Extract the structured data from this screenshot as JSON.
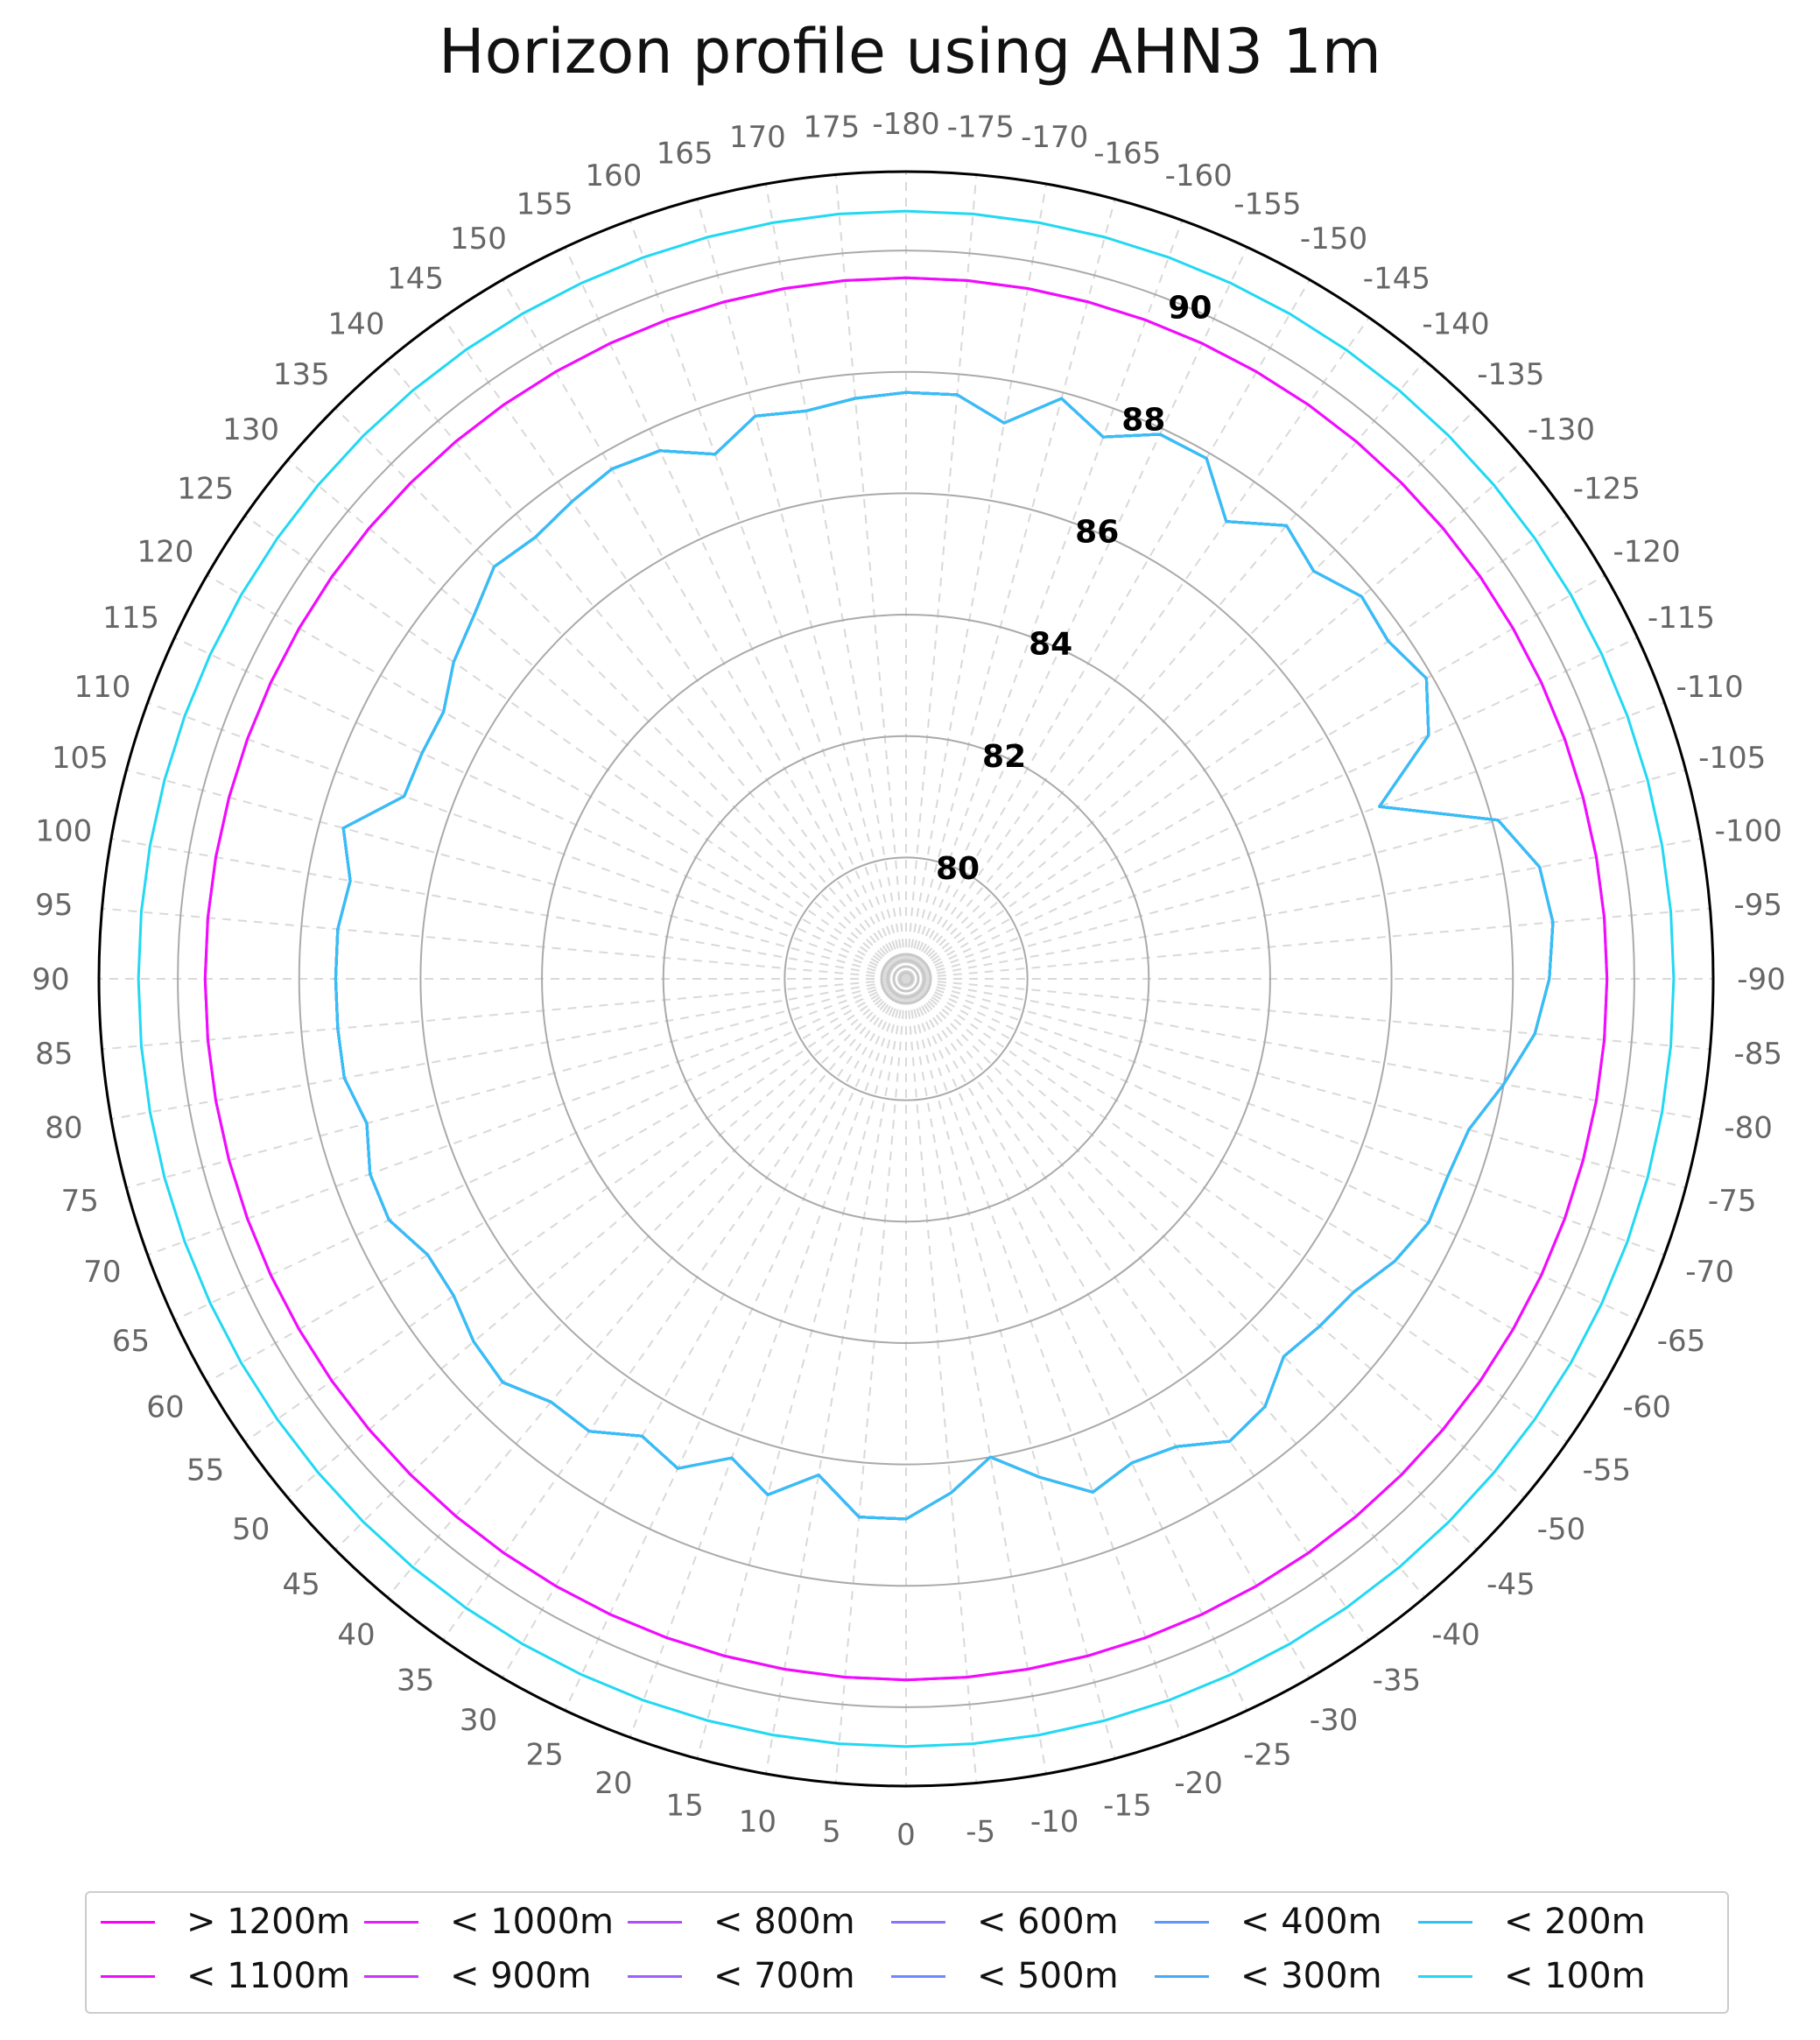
{
  "chart_data": {
    "type": "line",
    "polar": true,
    "title": "Horizon profile using AHN3 1m",
    "theta_direction": "clockwise",
    "theta_zero": "bottom",
    "theta_ticks": [
      -180,
      -175,
      -170,
      -165,
      -160,
      -155,
      -150,
      -145,
      -140,
      -135,
      -130,
      -125,
      -120,
      -115,
      -110,
      -105,
      -100,
      -95,
      -90,
      -85,
      -80,
      -75,
      -70,
      -65,
      -60,
      -55,
      -50,
      -45,
      -40,
      -35,
      -30,
      -25,
      -20,
      -15,
      -10,
      -5,
      0,
      5,
      10,
      15,
      20,
      25,
      30,
      35,
      40,
      45,
      50,
      55,
      60,
      65,
      70,
      75,
      80,
      85,
      90,
      95,
      100,
      105,
      110,
      115,
      120,
      125,
      130,
      135,
      140,
      145,
      150,
      155,
      160,
      165,
      170,
      175
    ],
    "r_ticks": [
      80,
      82,
      84,
      86,
      88,
      90
    ],
    "rlim": [
      78,
      91.3
    ],
    "grid": true,
    "legend_position": "bottom",
    "series": [
      {
        "name": "> 1200m",
        "color": "#ff00ff",
        "r": [
          89.55,
          89.55,
          89.55,
          89.55,
          89.55,
          89.55,
          89.55,
          89.55,
          89.55,
          89.55,
          89.55,
          89.55,
          89.55,
          89.55,
          89.55,
          89.55,
          89.55,
          89.55,
          89.55,
          89.55,
          89.55,
          89.55,
          89.55,
          89.55,
          89.55,
          89.55,
          89.55,
          89.55,
          89.55,
          89.55,
          89.55,
          89.55,
          89.55,
          89.55,
          89.55,
          89.55,
          89.55,
          89.55,
          89.55,
          89.55,
          89.55,
          89.55,
          89.55,
          89.55,
          89.55,
          89.55,
          89.55,
          89.55,
          89.55,
          89.55,
          89.55,
          89.55,
          89.55,
          89.55,
          89.55,
          89.55,
          89.55,
          89.55,
          89.55,
          89.55,
          89.55,
          89.55,
          89.55,
          89.55,
          89.55,
          89.55,
          89.55,
          89.55,
          89.55,
          89.55,
          89.55,
          89.55
        ]
      },
      {
        "name": "< 1100m",
        "color": "#f00cff",
        "r": [
          89.55,
          89.55,
          89.55,
          89.55,
          89.55,
          89.55,
          89.55,
          89.55,
          89.55,
          89.55,
          89.55,
          89.55,
          89.55,
          89.55,
          89.55,
          89.55,
          89.55,
          89.55,
          89.55,
          89.55,
          89.55,
          89.55,
          89.55,
          89.55,
          89.55,
          89.55,
          89.55,
          89.55,
          89.55,
          89.55,
          89.55,
          89.55,
          89.55,
          89.55,
          89.55,
          89.55,
          89.55,
          89.55,
          89.55,
          89.55,
          89.55,
          89.55,
          89.55,
          89.55,
          89.55,
          89.55,
          89.55,
          89.55,
          89.55,
          89.55,
          89.55,
          89.55,
          89.55,
          89.55,
          89.55,
          89.55,
          89.55,
          89.55,
          89.55,
          89.55,
          89.55,
          89.55,
          89.55,
          89.55,
          89.55,
          89.55,
          89.55,
          89.55,
          89.55,
          89.55,
          89.55,
          89.55
        ]
      },
      {
        "name": "< 1000m",
        "color": "#e020ff",
        "r": [
          87.66,
          87.66,
          87.3,
          87.9,
          87.5,
          87.9,
          87.9,
          87.2,
          87.75,
          87.5,
          87.8,
          87.7,
          87.9,
          87.5,
          86.3,
          88.1,
          88.6,
          88.7,
          88.6,
          88.4,
          88.0,
          87.6,
          87.5,
          87.5,
          87.3,
          87.0,
          86.9,
          86.8,
          87.2,
          87.3,
          86.9,
          86.8,
          87.0,
          86.5,
          86.0,
          86.5,
          86.9,
          86.9,
          86.3,
          86.8,
          86.4,
          86.9,
          86.7,
          87.1,
          87.1,
          87.4,
          87.3,
          87.1,
          87.1,
          87.4,
          87.4,
          87.2,
          87.4,
          87.4,
          87.4,
          87.4,
          87.3,
          87.6,
          86.8,
          86.8,
          86.8,
          87.1,
          87.3,
          87.6,
          87.5,
          87.6,
          87.7,
          87.6,
          87.2,
          87.6,
          87.5,
          87.6
        ]
      },
      {
        "name": "< 900m",
        "color": "#cc33ff",
        "r": [
          87.66,
          87.66,
          87.3,
          87.9,
          87.5,
          87.9,
          87.9,
          87.2,
          87.75,
          87.5,
          87.8,
          87.7,
          87.9,
          87.5,
          86.3,
          88.1,
          88.6,
          88.7,
          88.6,
          88.4,
          88.0,
          87.6,
          87.5,
          87.5,
          87.3,
          87.0,
          86.9,
          86.8,
          87.2,
          87.3,
          86.9,
          86.8,
          87.0,
          86.5,
          86.0,
          86.5,
          86.9,
          86.9,
          86.3,
          86.8,
          86.4,
          86.9,
          86.7,
          87.1,
          87.1,
          87.4,
          87.3,
          87.1,
          87.1,
          87.4,
          87.4,
          87.2,
          87.4,
          87.4,
          87.4,
          87.4,
          87.3,
          87.6,
          86.8,
          86.8,
          86.8,
          87.1,
          87.3,
          87.6,
          87.5,
          87.6,
          87.7,
          87.6,
          87.2,
          87.6,
          87.5,
          87.6
        ]
      },
      {
        "name": "< 800m",
        "color": "#b44bff",
        "r": [
          87.66,
          87.66,
          87.3,
          87.9,
          87.5,
          87.9,
          87.9,
          87.2,
          87.75,
          87.5,
          87.8,
          87.7,
          87.9,
          87.5,
          86.3,
          88.1,
          88.6,
          88.7,
          88.6,
          88.4,
          88.0,
          87.6,
          87.5,
          87.5,
          87.3,
          87.0,
          86.9,
          86.8,
          87.2,
          87.3,
          86.9,
          86.8,
          87.0,
          86.5,
          86.0,
          86.5,
          86.9,
          86.9,
          86.3,
          86.8,
          86.4,
          86.9,
          86.7,
          87.1,
          87.1,
          87.4,
          87.3,
          87.1,
          87.1,
          87.4,
          87.4,
          87.2,
          87.4,
          87.4,
          87.4,
          87.4,
          87.3,
          87.6,
          86.8,
          86.8,
          86.8,
          87.1,
          87.3,
          87.6,
          87.5,
          87.6,
          87.7,
          87.6,
          87.2,
          87.6,
          87.5,
          87.6
        ]
      },
      {
        "name": "< 700m",
        "color": "#9e5fff",
        "r": [
          87.66,
          87.66,
          87.3,
          87.9,
          87.5,
          87.9,
          87.9,
          87.2,
          87.75,
          87.5,
          87.8,
          87.7,
          87.9,
          87.5,
          86.3,
          88.1,
          88.6,
          88.7,
          88.6,
          88.4,
          88.0,
          87.6,
          87.5,
          87.5,
          87.3,
          87.0,
          86.9,
          86.8,
          87.2,
          87.3,
          86.9,
          86.8,
          87.0,
          86.5,
          86.0,
          86.5,
          86.9,
          86.9,
          86.3,
          86.8,
          86.4,
          86.9,
          86.7,
          87.1,
          87.1,
          87.4,
          87.3,
          87.1,
          87.1,
          87.4,
          87.4,
          87.2,
          87.4,
          87.4,
          87.4,
          87.4,
          87.3,
          87.6,
          86.8,
          86.8,
          86.8,
          87.1,
          87.3,
          87.6,
          87.5,
          87.6,
          87.7,
          87.6,
          87.2,
          87.6,
          87.5,
          87.6
        ]
      },
      {
        "name": "< 600m",
        "color": "#8673ff",
        "r": [
          87.66,
          87.66,
          87.3,
          87.9,
          87.5,
          87.9,
          87.9,
          87.2,
          87.75,
          87.5,
          87.8,
          87.7,
          87.9,
          87.5,
          86.3,
          88.1,
          88.6,
          88.7,
          88.6,
          88.4,
          88.0,
          87.6,
          87.5,
          87.5,
          87.3,
          87.0,
          86.9,
          86.8,
          87.2,
          87.3,
          86.9,
          86.8,
          87.0,
          86.5,
          86.0,
          86.5,
          86.9,
          86.9,
          86.3,
          86.8,
          86.4,
          86.9,
          86.7,
          87.1,
          87.1,
          87.4,
          87.3,
          87.1,
          87.1,
          87.4,
          87.4,
          87.2,
          87.4,
          87.4,
          87.4,
          87.4,
          87.3,
          87.6,
          86.8,
          86.8,
          86.8,
          87.1,
          87.3,
          87.6,
          87.5,
          87.6,
          87.7,
          87.6,
          87.2,
          87.6,
          87.5,
          87.6
        ]
      },
      {
        "name": "< 500m",
        "color": "#6f87ff",
        "r": [
          87.66,
          87.66,
          87.3,
          87.9,
          87.5,
          87.9,
          87.9,
          87.2,
          87.75,
          87.5,
          87.8,
          87.7,
          87.9,
          87.5,
          86.3,
          88.1,
          88.6,
          88.7,
          88.6,
          88.4,
          88.0,
          87.6,
          87.5,
          87.5,
          87.3,
          87.0,
          86.9,
          86.8,
          87.2,
          87.3,
          86.9,
          86.8,
          87.0,
          86.5,
          86.0,
          86.5,
          86.9,
          86.9,
          86.3,
          86.8,
          86.4,
          86.9,
          86.7,
          87.1,
          87.1,
          87.4,
          87.3,
          87.1,
          87.1,
          87.4,
          87.4,
          87.2,
          87.4,
          87.4,
          87.4,
          87.4,
          87.3,
          87.6,
          86.8,
          86.8,
          86.8,
          87.1,
          87.3,
          87.6,
          87.5,
          87.6,
          87.7,
          87.6,
          87.2,
          87.6,
          87.5,
          87.6
        ]
      },
      {
        "name": "< 400m",
        "color": "#5c97ff",
        "r": [
          87.66,
          87.66,
          87.3,
          87.9,
          87.5,
          87.9,
          87.9,
          87.2,
          87.75,
          87.5,
          87.8,
          87.7,
          87.9,
          87.5,
          86.3,
          88.1,
          88.6,
          88.7,
          88.6,
          88.4,
          88.0,
          87.6,
          87.5,
          87.5,
          87.3,
          87.0,
          86.9,
          86.8,
          87.2,
          87.3,
          86.9,
          86.8,
          87.0,
          86.5,
          86.0,
          86.5,
          86.9,
          86.9,
          86.3,
          86.8,
          86.4,
          86.9,
          86.7,
          87.1,
          87.1,
          87.4,
          87.3,
          87.1,
          87.1,
          87.4,
          87.4,
          87.2,
          87.4,
          87.4,
          87.4,
          87.4,
          87.3,
          87.6,
          86.8,
          86.8,
          86.8,
          87.1,
          87.3,
          87.6,
          87.5,
          87.6,
          87.7,
          87.6,
          87.2,
          87.6,
          87.5,
          87.6
        ]
      },
      {
        "name": "< 300m",
        "color": "#45abf8",
        "r": [
          87.66,
          87.66,
          87.3,
          87.9,
          87.5,
          87.9,
          87.9,
          87.2,
          87.75,
          87.5,
          87.8,
          87.7,
          87.9,
          87.5,
          86.3,
          88.1,
          88.6,
          88.7,
          88.6,
          88.4,
          88.0,
          87.6,
          87.5,
          87.5,
          87.3,
          87.0,
          86.9,
          86.8,
          87.2,
          87.3,
          86.9,
          86.8,
          87.0,
          86.5,
          86.0,
          86.5,
          86.9,
          86.9,
          86.3,
          86.8,
          86.4,
          86.9,
          86.7,
          87.1,
          87.1,
          87.4,
          87.3,
          87.1,
          87.1,
          87.4,
          87.4,
          87.2,
          87.4,
          87.4,
          87.4,
          87.4,
          87.3,
          87.6,
          86.8,
          86.8,
          86.8,
          87.1,
          87.3,
          87.6,
          87.5,
          87.6,
          87.7,
          87.6,
          87.2,
          87.6,
          87.5,
          87.6
        ]
      },
      {
        "name": "< 200m",
        "color": "#33c0f5",
        "r": [
          87.66,
          87.66,
          87.3,
          87.9,
          87.5,
          87.9,
          87.9,
          87.2,
          87.75,
          87.5,
          87.8,
          87.7,
          87.9,
          87.5,
          86.3,
          88.1,
          88.6,
          88.7,
          88.6,
          88.4,
          88.0,
          87.6,
          87.5,
          87.5,
          87.3,
          87.0,
          86.9,
          86.8,
          87.2,
          87.3,
          86.9,
          86.8,
          87.0,
          86.5,
          86.0,
          86.5,
          86.9,
          86.9,
          86.3,
          86.8,
          86.4,
          86.9,
          86.7,
          87.1,
          87.1,
          87.4,
          87.3,
          87.1,
          87.1,
          87.4,
          87.4,
          87.2,
          87.4,
          87.4,
          87.4,
          87.4,
          87.3,
          87.6,
          86.8,
          86.8,
          86.8,
          87.1,
          87.3,
          87.6,
          87.5,
          87.6,
          87.7,
          87.6,
          87.2,
          87.6,
          87.5,
          87.6
        ]
      },
      {
        "name": "< 100m",
        "color": "#22d8f2",
        "r": [
          90.65,
          90.65,
          90.65,
          90.65,
          90.65,
          90.65,
          90.65,
          90.65,
          90.65,
          90.65,
          90.65,
          90.65,
          90.65,
          90.65,
          90.65,
          90.65,
          90.65,
          90.65,
          90.65,
          90.65,
          90.65,
          90.65,
          90.65,
          90.65,
          90.65,
          90.65,
          90.65,
          90.65,
          90.65,
          90.65,
          90.65,
          90.65,
          90.65,
          90.65,
          90.65,
          90.65,
          90.65,
          90.65,
          90.65,
          90.65,
          90.65,
          90.65,
          90.65,
          90.65,
          90.65,
          90.65,
          90.65,
          90.65,
          90.65,
          90.65,
          90.65,
          90.65,
          90.65,
          90.65,
          90.65,
          90.65,
          90.65,
          90.65,
          90.65,
          90.65,
          90.65,
          90.65,
          90.65,
          90.65,
          90.65,
          90.65,
          90.65,
          90.65,
          90.65,
          90.65,
          90.65,
          90.65
        ]
      }
    ]
  }
}
